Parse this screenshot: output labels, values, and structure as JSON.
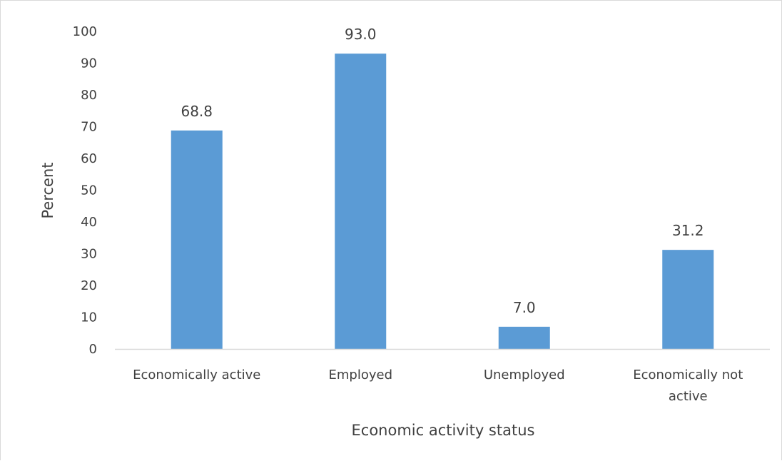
{
  "chart_data": {
    "type": "bar",
    "categories": [
      [
        "Economically active"
      ],
      [
        "Employed"
      ],
      [
        "Unemployed"
      ],
      [
        "Economically not",
        "active"
      ]
    ],
    "values": [
      68.8,
      93.0,
      7.0,
      31.2
    ],
    "data_labels": [
      "68.8",
      "93.0",
      "7.0",
      "31.2"
    ],
    "title": "",
    "xlabel": "Economic activity status",
    "ylabel": "Percent",
    "ylim": [
      0,
      100
    ],
    "y_ticks": [
      0,
      10,
      20,
      30,
      40,
      50,
      60,
      70,
      80,
      90,
      100
    ],
    "grid": false,
    "legend": "none",
    "bar_color": "#5b9bd5",
    "axis_color": "#d9d9d9",
    "text_color": "#404040"
  }
}
